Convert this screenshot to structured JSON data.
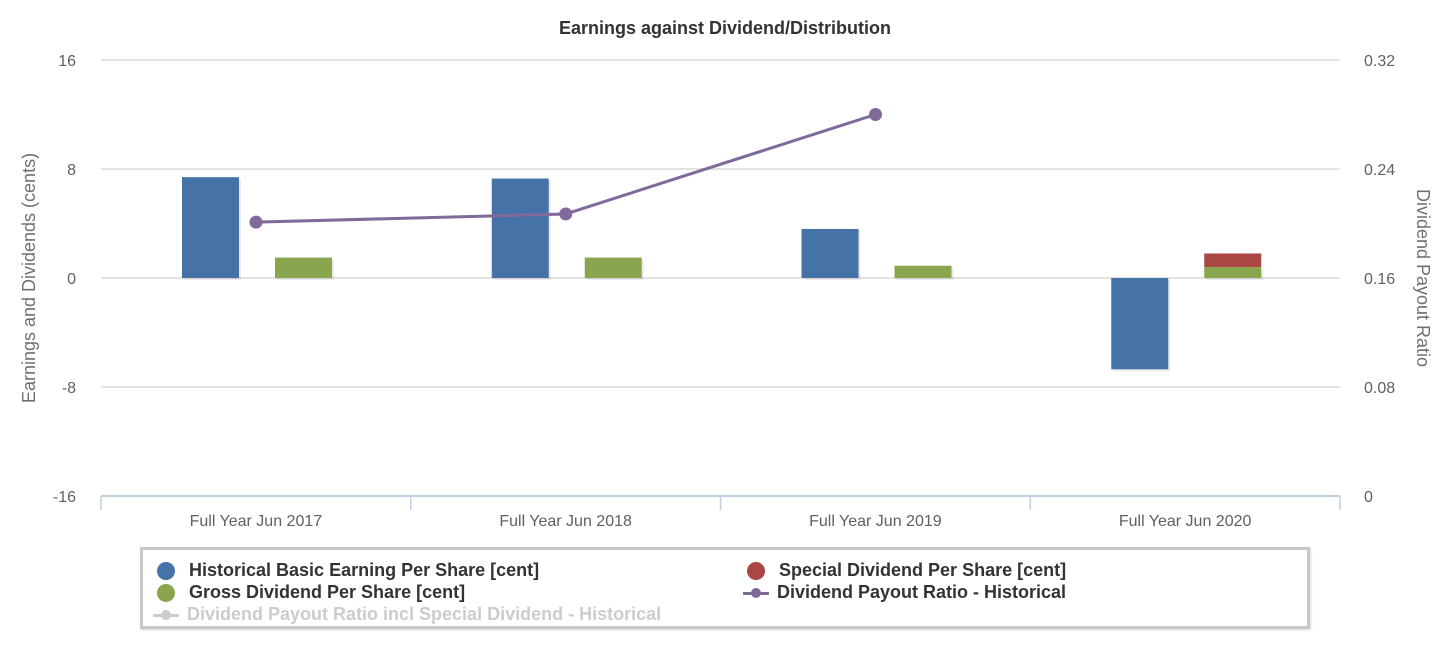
{
  "chart_data": {
    "type": "bar",
    "title": "Earnings against Dividend/Distribution",
    "categories": [
      "Full Year Jun 2017",
      "Full Year Jun 2018",
      "Full Year Jun 2019",
      "Full Year Jun 2020"
    ],
    "y_left": {
      "label": "Earnings and Dividends (cents)",
      "min": -16,
      "max": 16,
      "ticks": [
        "-16",
        "-8",
        "0",
        "8",
        "16"
      ]
    },
    "y_right": {
      "label": "Dividend Payout Ratio",
      "min": 0,
      "max": 0.32,
      "ticks": [
        "0",
        "0.08",
        "0.16",
        "0.24",
        "0.32"
      ]
    },
    "grid": true,
    "legend_position": "bottom",
    "series": [
      {
        "name": "Historical Basic Earning Per Share [cent]",
        "type": "bar",
        "axis": "left",
        "color": "#4572a7",
        "values": [
          7.4,
          7.3,
          3.6,
          -6.7
        ]
      },
      {
        "name": "Gross Dividend Per Share [cent]",
        "type": "stacked-bar",
        "axis": "left",
        "color": "#89a54e",
        "values": [
          1.5,
          1.5,
          0.9,
          0.8
        ]
      },
      {
        "name": "Special Dividend Per Share [cent]",
        "type": "stacked-bar",
        "axis": "left",
        "color": "#aa4643",
        "values": [
          0,
          0,
          0,
          1.0
        ]
      },
      {
        "name": "Dividend Payout Ratio - Historical",
        "type": "line",
        "axis": "right",
        "color": "#80699b",
        "values": [
          0.201,
          0.207,
          0.28,
          null
        ]
      },
      {
        "name": "Dividend Payout Ratio incl Special Dividend - Historical",
        "type": "line",
        "axis": "right",
        "color": "#cccccc",
        "hidden": true,
        "values": []
      }
    ]
  },
  "legend": {
    "items": [
      {
        "label": "Historical Basic Earning Per Share [cent]",
        "color": "#4572a7",
        "symbol": "circle"
      },
      {
        "label": "Special Dividend Per Share [cent]",
        "color": "#aa4643",
        "symbol": "circle"
      },
      {
        "label": "Gross Dividend Per Share [cent]",
        "color": "#89a54e",
        "symbol": "circle"
      },
      {
        "label": "Dividend Payout Ratio - Historical",
        "color": "#80699b",
        "symbol": "line"
      },
      {
        "label": "Dividend Payout Ratio incl Special Dividend - Historical",
        "color": "#cccccc",
        "symbol": "line"
      }
    ]
  }
}
